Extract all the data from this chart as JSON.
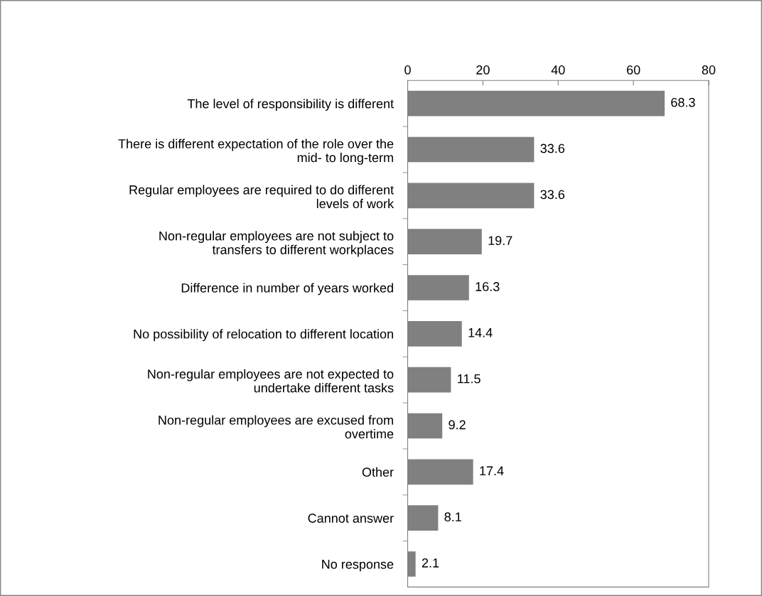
{
  "chart_data": {
    "type": "bar",
    "orientation": "horizontal",
    "categories": [
      "The level of responsibility is different",
      "There is different expectation of the role over the\nmid- to long-term",
      "Regular employees are required to do different\nlevels of work",
      "Non-regular employees are not subject to\ntransfers to different workplaces",
      "Difference in number of years worked",
      "No possibility of relocation to different location",
      "Non-regular employees are not expected to\nundertake different tasks",
      "Non-regular employees are excused from\novertime",
      "Other",
      "Cannot answer",
      "No response"
    ],
    "values": [
      68.3,
      33.6,
      33.6,
      19.7,
      16.3,
      14.4,
      11.5,
      9.2,
      17.4,
      8.1,
      2.1
    ],
    "color": "#808080",
    "xlim": [
      0,
      80
    ],
    "xticks": [
      0,
      20,
      40,
      60,
      80
    ],
    "data_labels": true,
    "grid": false,
    "legend": false
  }
}
